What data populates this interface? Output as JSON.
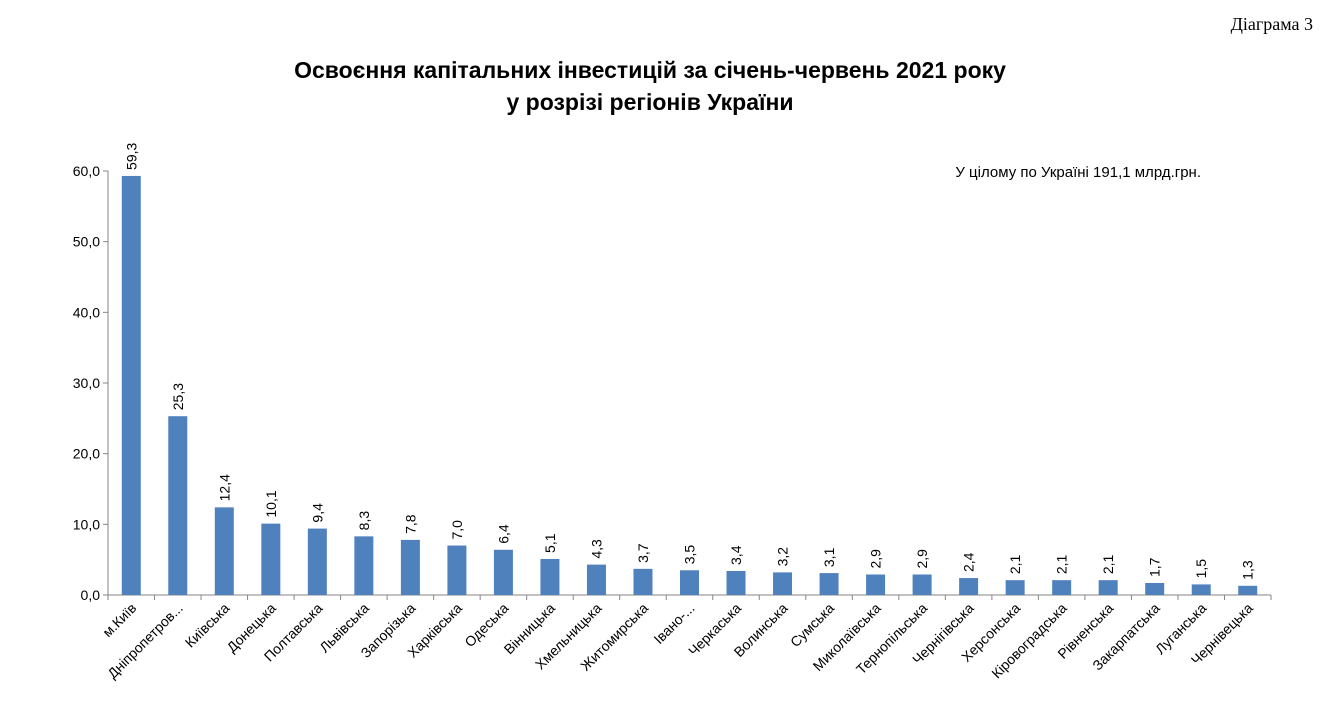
{
  "corner_label": "Діаграма 3",
  "chart_data": {
    "type": "bar",
    "title": "Освоєння капітальних інвестицій  за січень-червень 2021 року",
    "subtitle": "у розрізі регіонів України",
    "annotation": "У цілому по Україні  191,1 млрд.грн.",
    "xlabel": "",
    "ylabel": "",
    "ylim": [
      0,
      60
    ],
    "y_ticks": [
      "0,0",
      "10,0",
      "20,0",
      "30,0",
      "40,0",
      "50,0",
      "60,0"
    ],
    "grid": false,
    "legend": "none",
    "bar_color": "#4f81bd",
    "categories": [
      "м.Київ",
      "Дніпропетров...",
      "Київська",
      "Донецька",
      "Полтавська",
      "Львівська",
      "Запорізька",
      "Харківська",
      "Одеська",
      "Вінницька",
      "Хмельницька",
      "Житомирська",
      "Івано-...",
      "Черкаська",
      "Волинська",
      "Сумська",
      "Миколаївська",
      "Тернопільська",
      "Чернігівська",
      "Херсонська",
      "Кіровоградська",
      "Рівненська",
      "Закарпатська",
      "Луганська",
      "Чернівецька"
    ],
    "values": [
      59.3,
      25.3,
      12.4,
      10.1,
      9.4,
      8.3,
      7.8,
      7.0,
      6.4,
      5.1,
      4.3,
      3.7,
      3.5,
      3.4,
      3.2,
      3.1,
      2.9,
      2.9,
      2.4,
      2.1,
      2.1,
      2.1,
      1.7,
      1.5,
      1.3
    ],
    "data_labels": [
      "59,3",
      "25,3",
      "12,4",
      "10,1",
      "9,4",
      "8,3",
      "7,8",
      "7,0",
      "6,4",
      "5,1",
      "4,3",
      "3,7",
      "3,5",
      "3,4",
      "3,2",
      "3,1",
      "2,9",
      "2,9",
      "2,4",
      "2,1",
      "2,1",
      "2,1",
      "1,7",
      "1,5",
      "1,3"
    ]
  }
}
